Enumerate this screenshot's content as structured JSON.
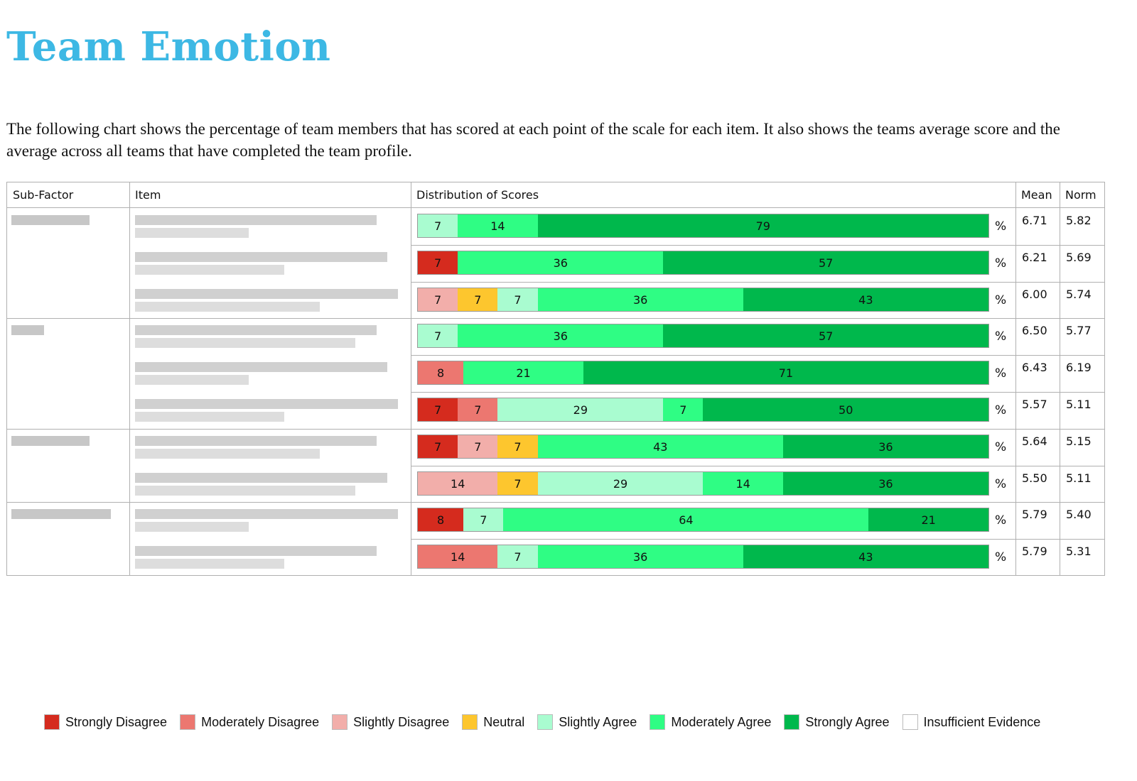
{
  "title": "Team Emotion",
  "intro": "The following chart shows the percentage of team members that has scored at each point of the scale for each item.  It also shows the teams average score and the average across all teams that have completed the team profile.",
  "table": {
    "headers": {
      "subfactor": "Sub-Factor",
      "item": "Item",
      "distribution": "Distribution of Scores",
      "mean": "Mean",
      "norm": "Norm"
    },
    "pct_symbol": "%"
  },
  "chart_data": {
    "type": "bar",
    "orientation": "horizontal-stacked-100",
    "title": "Distribution of Scores",
    "unit": "%",
    "categories_order": [
      "Strongly Disagree",
      "Moderately Disagree",
      "Slightly Disagree",
      "Neutral",
      "Slightly Agree",
      "Moderately Agree",
      "Strongly Agree",
      "Insufficient Evidence"
    ],
    "colors": {
      "Strongly Disagree": "#d52b1e",
      "Moderately Disagree": "#ec7770",
      "Slightly Disagree": "#f2aeaa",
      "Neutral": "#fdc62e",
      "Slightly Agree": "#a9fcd0",
      "Moderately Agree": "#2ffd84",
      "Strongly Agree": "#00b84c",
      "Insufficient Evidence": "#ffffff"
    },
    "rows": [
      {
        "segments": [
          {
            "cat": "Slightly Agree",
            "value": 7
          },
          {
            "cat": "Moderately Agree",
            "value": 14
          },
          {
            "cat": "Strongly Agree",
            "value": 79
          }
        ],
        "mean": "6.71",
        "norm": "5.82"
      },
      {
        "segments": [
          {
            "cat": "Strongly Disagree",
            "value": 7
          },
          {
            "cat": "Moderately Agree",
            "value": 36
          },
          {
            "cat": "Strongly Agree",
            "value": 57
          }
        ],
        "mean": "6.21",
        "norm": "5.69"
      },
      {
        "segments": [
          {
            "cat": "Slightly Disagree",
            "value": 7
          },
          {
            "cat": "Neutral",
            "value": 7
          },
          {
            "cat": "Slightly Agree",
            "value": 7
          },
          {
            "cat": "Moderately Agree",
            "value": 36
          },
          {
            "cat": "Strongly Agree",
            "value": 43
          }
        ],
        "mean": "6.00",
        "norm": "5.74"
      },
      {
        "segments": [
          {
            "cat": "Slightly Agree",
            "value": 7
          },
          {
            "cat": "Moderately Agree",
            "value": 36
          },
          {
            "cat": "Strongly Agree",
            "value": 57
          }
        ],
        "mean": "6.50",
        "norm": "5.77"
      },
      {
        "segments": [
          {
            "cat": "Moderately Disagree",
            "value": 8
          },
          {
            "cat": "Moderately Agree",
            "value": 21
          },
          {
            "cat": "Strongly Agree",
            "value": 71
          }
        ],
        "mean": "6.43",
        "norm": "6.19"
      },
      {
        "segments": [
          {
            "cat": "Strongly Disagree",
            "value": 7
          },
          {
            "cat": "Moderately Disagree",
            "value": 7
          },
          {
            "cat": "Slightly Agree",
            "value": 29
          },
          {
            "cat": "Moderately Agree",
            "value": 7
          },
          {
            "cat": "Strongly Agree",
            "value": 50
          }
        ],
        "mean": "5.57",
        "norm": "5.11"
      },
      {
        "segments": [
          {
            "cat": "Strongly Disagree",
            "value": 7
          },
          {
            "cat": "Slightly Disagree",
            "value": 7
          },
          {
            "cat": "Neutral",
            "value": 7
          },
          {
            "cat": "Moderately Agree",
            "value": 43
          },
          {
            "cat": "Strongly Agree",
            "value": 36
          }
        ],
        "mean": "5.64",
        "norm": "5.15"
      },
      {
        "segments": [
          {
            "cat": "Slightly Disagree",
            "value": 14
          },
          {
            "cat": "Neutral",
            "value": 7
          },
          {
            "cat": "Slightly Agree",
            "value": 29
          },
          {
            "cat": "Moderately Agree",
            "value": 14
          },
          {
            "cat": "Strongly Agree",
            "value": 36
          }
        ],
        "mean": "5.50",
        "norm": "5.11"
      },
      {
        "segments": [
          {
            "cat": "Strongly Disagree",
            "value": 8
          },
          {
            "cat": "Slightly Agree",
            "value": 7
          },
          {
            "cat": "Moderately Agree",
            "value": 64
          },
          {
            "cat": "Strongly Agree",
            "value": 21
          }
        ],
        "mean": "5.79",
        "norm": "5.40"
      },
      {
        "segments": [
          {
            "cat": "Moderately Disagree",
            "value": 14
          },
          {
            "cat": "Slightly Agree",
            "value": 7
          },
          {
            "cat": "Moderately Agree",
            "value": 36
          },
          {
            "cat": "Strongly Agree",
            "value": 43
          }
        ],
        "mean": "5.79",
        "norm": "5.31"
      }
    ],
    "legend": [
      "Strongly Disagree",
      "Moderately Disagree",
      "Slightly Disagree",
      "Neutral",
      "Slightly Agree",
      "Moderately Agree",
      "Strongly Agree",
      "Insufficient Evidence"
    ],
    "legend_position": "bottom"
  }
}
